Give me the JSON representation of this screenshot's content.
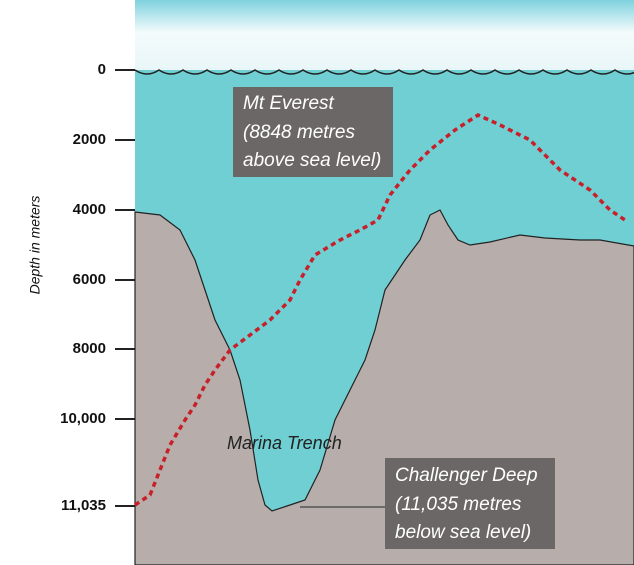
{
  "axis": {
    "label": "Depth in meters",
    "ticks": [
      "0",
      "2000",
      "4000",
      "6000",
      "8000",
      "10,000",
      "11,035"
    ]
  },
  "annotations": {
    "everest": [
      "Mt Everest",
      "(8848 metres",
      "above sea level)"
    ],
    "trench": "Marina Trench",
    "deep": [
      "Challenger Deep",
      "(11,035  metres",
      "below sea level)"
    ]
  }
}
